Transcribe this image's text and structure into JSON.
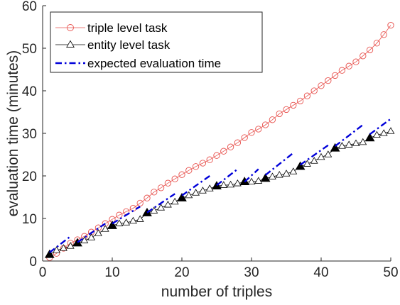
{
  "chart_data": {
    "type": "line",
    "xlabel": "number of triples",
    "ylabel": "evaluation time (minutes)",
    "xlim": [
      0,
      50
    ],
    "ylim": [
      0,
      60
    ],
    "xticks": [
      "0",
      "10",
      "20",
      "30",
      "40",
      "50"
    ],
    "yticks": [
      "0",
      "10",
      "20",
      "30",
      "40",
      "50",
      "60"
    ],
    "grid": false,
    "legend_position": "top-left",
    "series": [
      {
        "name": "triple level task",
        "color": "#e8534f",
        "marker": "circle",
        "x": [
          1,
          2,
          3,
          4,
          5,
          6,
          7,
          8,
          9,
          10,
          11,
          12,
          13,
          14,
          15,
          16,
          17,
          18,
          19,
          20,
          21,
          22,
          23,
          24,
          25,
          26,
          27,
          28,
          29,
          30,
          31,
          32,
          33,
          34,
          35,
          36,
          37,
          38,
          39,
          40,
          41,
          42,
          43,
          44,
          45,
          46,
          47,
          48,
          49,
          50
        ],
        "y": [
          0.8,
          1.8,
          3.0,
          4.2,
          5.0,
          5.8,
          6.8,
          7.8,
          8.8,
          9.8,
          10.8,
          11.6,
          12.4,
          13.6,
          14.8,
          16.2,
          17.2,
          18.3,
          19.3,
          20.3,
          21.3,
          22.2,
          23.0,
          23.8,
          24.8,
          25.8,
          26.8,
          27.8,
          29.0,
          30.2,
          31.0,
          32.0,
          33.2,
          34.6,
          35.6,
          36.6,
          37.6,
          38.8,
          40.0,
          41.2,
          42.4,
          43.6,
          44.8,
          45.8,
          46.8,
          48.2,
          49.6,
          51.2,
          53.2,
          55.4
        ]
      },
      {
        "name": "entity level task",
        "color": "#000000",
        "marker": "triangle",
        "x": [
          1,
          2,
          3,
          4,
          5,
          6,
          7,
          8,
          9,
          10,
          11,
          12,
          13,
          14,
          15,
          16,
          17,
          18,
          19,
          20,
          21,
          22,
          23,
          24,
          25,
          26,
          27,
          28,
          29,
          30,
          31,
          32,
          33,
          34,
          35,
          36,
          37,
          38,
          39,
          40,
          41,
          42,
          43,
          44,
          45,
          46,
          47,
          48,
          49,
          50
        ],
        "y": [
          1.5,
          2.5,
          3.0,
          3.5,
          4.2,
          4.8,
          5.5,
          6.5,
          7.5,
          8.3,
          8.8,
          9.0,
          9.4,
          9.8,
          11.3,
          11.8,
          12.5,
          13.2,
          13.9,
          14.8,
          15.4,
          16.0,
          16.5,
          17.0,
          17.6,
          17.8,
          17.9,
          18.2,
          18.6,
          18.6,
          18.8,
          19.4,
          19.8,
          20.2,
          20.5,
          21.0,
          22.2,
          22.8,
          23.5,
          24.4,
          25.0,
          26.5,
          27.0,
          27.3,
          27.6,
          27.9,
          28.9,
          29.6,
          30.0,
          30.5
        ],
        "filled_points": [
          1,
          5,
          10,
          15,
          20,
          25,
          29,
          32,
          37,
          42,
          47
        ]
      },
      {
        "name": "expected evaluation time",
        "color": "#0000d9",
        "dash": "dash-dot",
        "segments": [
          {
            "x": [
              1,
              4
            ],
            "y": [
              2.0,
              5.8
            ]
          },
          {
            "x": [
              5,
              9
            ],
            "y": [
              4.4,
              8.8
            ]
          },
          {
            "x": [
              10,
              14
            ],
            "y": [
              8.8,
              12.8
            ]
          },
          {
            "x": [
              15,
              19
            ],
            "y": [
              11.4,
              15.8
            ]
          },
          {
            "x": [
              20,
              24
            ],
            "y": [
              15.4,
              20.0
            ]
          },
          {
            "x": [
              25,
              28
            ],
            "y": [
              17.8,
              21.6
            ]
          },
          {
            "x": [
              29,
              31
            ],
            "y": [
              18.6,
              21.6
            ]
          },
          {
            "x": [
              32,
              36
            ],
            "y": [
              20.2,
              25.4
            ]
          },
          {
            "x": [
              37,
              41
            ],
            "y": [
              22.6,
              27.2
            ]
          },
          {
            "x": [
              42,
              46
            ],
            "y": [
              27.0,
              32.0
            ]
          },
          {
            "x": [
              47,
              50
            ],
            "y": [
              29.8,
              33.4
            ]
          }
        ]
      }
    ]
  }
}
